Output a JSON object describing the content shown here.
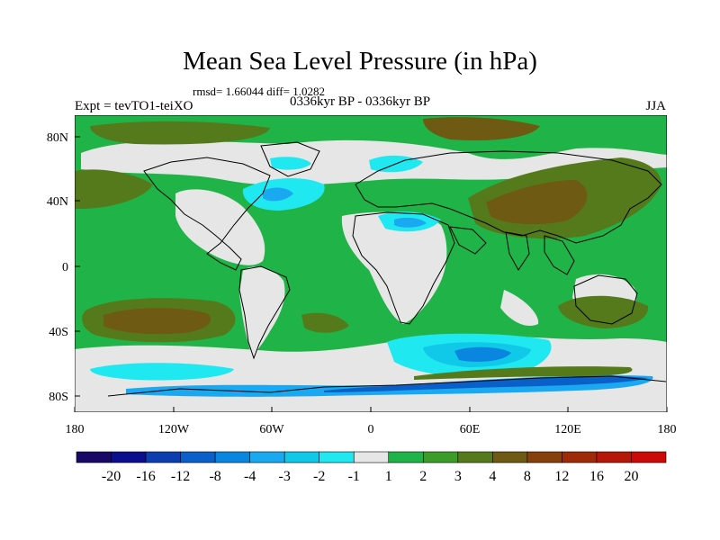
{
  "title": "Mean Sea Level Pressure (in hPa)",
  "stats": "rmsd= 1.66044 diff= 1.0282",
  "left_label": "Expt = tevTO1-teiXO",
  "center_label": "0336kyr BP - 0336kyr BP",
  "right_label": "JJA",
  "y_ticks": [
    "80N",
    "40N",
    "0",
    "40S",
    "80S"
  ],
  "x_ticks": [
    "180",
    "120W",
    "60W",
    "0",
    "60E",
    "120E",
    "180"
  ],
  "colorbar": {
    "colors": [
      "#1a0866",
      "#0c0f8c",
      "#0b3fb0",
      "#0a60c8",
      "#0a86e0",
      "#1aa8f0",
      "#10c8e8",
      "#20e8f0",
      "#e6e6e6",
      "#20b448",
      "#3c9c28",
      "#557a1c",
      "#6e5a12",
      "#86400c",
      "#9e2a08",
      "#b51808",
      "#cc0a06"
    ],
    "labels": [
      "-20",
      "-16",
      "-12",
      "-8",
      "-4",
      "-3",
      "-2",
      "-1",
      "1",
      "2",
      "3",
      "4",
      "8",
      "12",
      "16",
      "20"
    ]
  },
  "fill_colors": {
    "gray": "#e6e6e6",
    "green": "#20b448",
    "dark_green": "#3c9c28",
    "olive": "#557a1c",
    "brown": "#6e5a12",
    "cyan": "#20e8f0",
    "light_blue": "#10c8e8",
    "blue": "#1aa8f0",
    "mid_blue": "#0a86e0",
    "dark_blue": "#0a60c8"
  }
}
